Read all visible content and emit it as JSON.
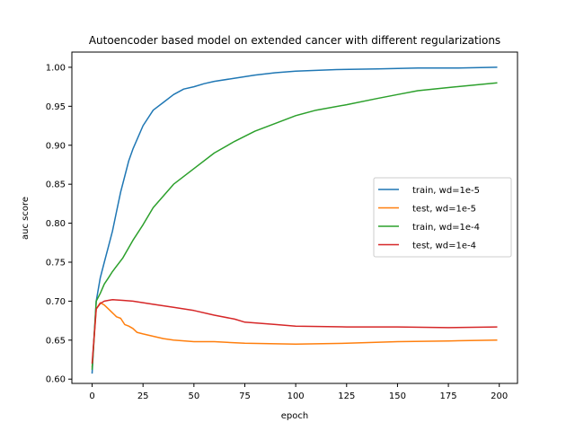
{
  "chart_data": {
    "type": "line",
    "title": "Autoencoder based model on extended cancer with different regularizations",
    "xlabel": "epoch",
    "ylabel": "auc score",
    "xlim": [
      -9.95,
      208.95
    ],
    "ylim": [
      0.5945,
      1.0195
    ],
    "xticks": [
      0,
      25,
      50,
      75,
      100,
      125,
      150,
      175,
      200
    ],
    "yticks": [
      0.6,
      0.65,
      0.7,
      0.75,
      0.8,
      0.85,
      0.9,
      0.95,
      1.0
    ],
    "xtick_labels": [
      "0",
      "25",
      "50",
      "75",
      "100",
      "125",
      "150",
      "175",
      "200"
    ],
    "ytick_labels": [
      "0.60",
      "0.65",
      "0.70",
      "0.75",
      "0.80",
      "0.85",
      "0.90",
      "0.95",
      "1.00"
    ],
    "grid": false,
    "legend_position": "center-right",
    "series": [
      {
        "name": "train, wd=1e-5",
        "color": "#1f77b4",
        "x": [
          0,
          2,
          4,
          6,
          8,
          10,
          12,
          14,
          16,
          18,
          20,
          25,
          30,
          35,
          40,
          45,
          50,
          55,
          60,
          70,
          80,
          90,
          100,
          120,
          140,
          160,
          180,
          199
        ],
        "y": [
          0.607,
          0.7,
          0.73,
          0.75,
          0.77,
          0.79,
          0.815,
          0.84,
          0.86,
          0.88,
          0.895,
          0.925,
          0.945,
          0.955,
          0.965,
          0.972,
          0.975,
          0.979,
          0.982,
          0.986,
          0.99,
          0.993,
          0.995,
          0.997,
          0.998,
          0.999,
          0.999,
          1.0
        ]
      },
      {
        "name": "test, wd=1e-5",
        "color": "#ff7f0e",
        "x": [
          0,
          2,
          4,
          6,
          8,
          10,
          12,
          14,
          16,
          18,
          20,
          22,
          25,
          30,
          35,
          40,
          50,
          60,
          75,
          100,
          125,
          150,
          175,
          199
        ],
        "y": [
          0.615,
          0.69,
          0.698,
          0.695,
          0.69,
          0.685,
          0.68,
          0.678,
          0.67,
          0.668,
          0.665,
          0.66,
          0.658,
          0.655,
          0.652,
          0.65,
          0.648,
          0.648,
          0.646,
          0.645,
          0.646,
          0.648,
          0.649,
          0.65
        ]
      },
      {
        "name": "train, wd=1e-4",
        "color": "#2ca02c",
        "x": [
          0,
          2,
          4,
          6,
          8,
          10,
          15,
          20,
          25,
          30,
          40,
          50,
          60,
          70,
          80,
          90,
          100,
          110,
          125,
          140,
          150,
          160,
          175,
          199
        ],
        "y": [
          0.612,
          0.7,
          0.71,
          0.722,
          0.73,
          0.738,
          0.755,
          0.778,
          0.798,
          0.82,
          0.85,
          0.87,
          0.89,
          0.905,
          0.918,
          0.928,
          0.938,
          0.945,
          0.952,
          0.96,
          0.965,
          0.97,
          0.974,
          0.98
        ]
      },
      {
        "name": "test, wd=1e-4",
        "color": "#d62728",
        "x": [
          0,
          2,
          4,
          6,
          8,
          10,
          15,
          20,
          25,
          30,
          40,
          50,
          60,
          70,
          75,
          90,
          100,
          125,
          150,
          175,
          199
        ],
        "y": [
          0.62,
          0.69,
          0.697,
          0.7,
          0.701,
          0.702,
          0.701,
          0.7,
          0.698,
          0.696,
          0.692,
          0.688,
          0.682,
          0.677,
          0.673,
          0.67,
          0.668,
          0.667,
          0.667,
          0.666,
          0.667
        ]
      }
    ]
  }
}
